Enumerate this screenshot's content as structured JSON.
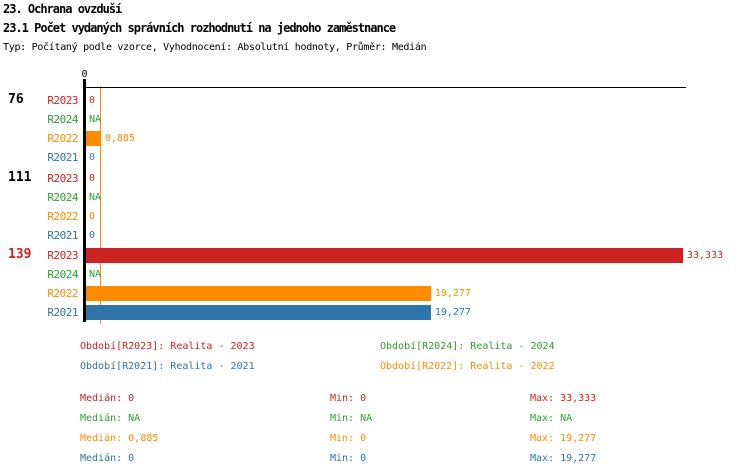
{
  "header": {
    "title": "23. Ochrana ovzduší",
    "subtitle": "23.1 Počet vydaných správních rozhodnutí na jednoho zaměstnance",
    "meta": "Typ: Počítaný podle vzorce, Vyhodnocení: Absolutní hodnoty, Průměr: Medián"
  },
  "colors": {
    "R2023": "#cc2222",
    "R2024": "#2f9e2f",
    "R2022": "#ff8c00",
    "R2021": "#2e74a9",
    "axis": "#000000",
    "group_highlight": "#cc2222"
  },
  "chart_data": {
    "type": "bar",
    "orientation": "horizontal",
    "title": "23.1 Počet vydaných správních rozhodnutí na jednoho zaměstnance",
    "xlabel": "",
    "ylabel": "",
    "xlim": [
      0,
      33.333
    ],
    "axis_tick_label": "0",
    "grid": false,
    "median_line": {
      "series": "R2022",
      "value": 0.885
    },
    "series_order": [
      "R2023",
      "R2024",
      "R2022",
      "R2021"
    ],
    "groups": [
      {
        "label": "76",
        "label_color": "#000000",
        "rows": [
          {
            "series": "R2023",
            "value": 0,
            "display": "0"
          },
          {
            "series": "R2024",
            "value": null,
            "display": "NA"
          },
          {
            "series": "R2022",
            "value": 0.885,
            "display": "0,885"
          },
          {
            "series": "R2021",
            "value": 0,
            "display": "0"
          }
        ]
      },
      {
        "label": "111",
        "label_color": "#000000",
        "rows": [
          {
            "series": "R2023",
            "value": 0,
            "display": "0"
          },
          {
            "series": "R2024",
            "value": null,
            "display": "NA"
          },
          {
            "series": "R2022",
            "value": 0,
            "display": "0"
          },
          {
            "series": "R2021",
            "value": 0,
            "display": "0"
          }
        ]
      },
      {
        "label": "139",
        "label_color": "#cc2222",
        "rows": [
          {
            "series": "R2023",
            "value": 33.333,
            "display": "33,333"
          },
          {
            "series": "R2024",
            "value": null,
            "display": "NA"
          },
          {
            "series": "R2022",
            "value": 19.277,
            "display": "19,277"
          },
          {
            "series": "R2021",
            "value": 19.277,
            "display": "19,277"
          }
        ]
      }
    ]
  },
  "legend": [
    {
      "series": "R2023",
      "text": "Období[R2023]: Realita - 2023"
    },
    {
      "series": "R2024",
      "text": "Období[R2024]: Realita - 2024"
    },
    {
      "series": "R2022",
      "text": "Období[R2022]: Realita - 2022"
    },
    {
      "series": "R2021",
      "text": "Období[R2021]: Realita - 2021"
    }
  ],
  "stats_labels": {
    "median": "Medián",
    "min": "Min",
    "max": "Max"
  },
  "stats": [
    {
      "series": "R2023",
      "median": "0",
      "min": "0",
      "max": "33,333"
    },
    {
      "series": "R2024",
      "median": "NA",
      "min": "NA",
      "max": "NA"
    },
    {
      "series": "R2022",
      "median": "0,885",
      "min": "0",
      "max": "19,277"
    },
    {
      "series": "R2021",
      "median": "0",
      "min": "0",
      "max": "19,277"
    }
  ]
}
